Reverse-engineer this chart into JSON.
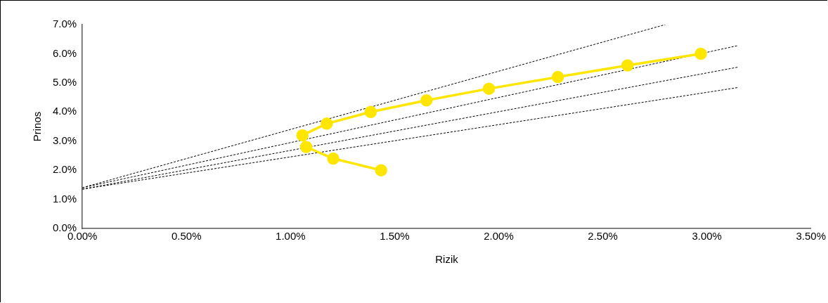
{
  "chart_data": {
    "type": "line",
    "xlabel": "Rizik",
    "ylabel": "Prinos",
    "grid": false,
    "legend": false,
    "xlim": [
      0,
      3.5
    ],
    "xticks": [
      {
        "value": 0,
        "label": "0.00%"
      },
      {
        "value": 0.5,
        "label": "0.50%"
      },
      {
        "value": 1,
        "label": "1.00%"
      },
      {
        "value": 1.5,
        "label": "1.50%"
      },
      {
        "value": 2,
        "label": "2.00%"
      },
      {
        "value": 2.5,
        "label": "2.50%"
      },
      {
        "value": 3,
        "label": "3.00%"
      },
      {
        "value": 3.5,
        "label": "3.50%"
      }
    ],
    "ylim": [
      0,
      7
    ],
    "yticks": [
      {
        "value": 0,
        "label": "0.0%"
      },
      {
        "value": 1,
        "label": "1.0%"
      },
      {
        "value": 2,
        "label": "2.0%"
      },
      {
        "value": 3,
        "label": "3.0%"
      },
      {
        "value": 4,
        "label": "4.0%"
      },
      {
        "value": 5,
        "label": "5.0%"
      },
      {
        "value": 6,
        "label": "6.0%"
      },
      {
        "value": 7,
        "label": "7.0%"
      }
    ],
    "series": [
      {
        "color": "#ffe600",
        "marker": "circle",
        "line_style": "solid",
        "x": [
          1.435,
          1.205,
          1.075,
          1.057,
          1.174,
          1.385,
          1.653,
          1.953,
          2.284,
          2.619,
          2.971
        ],
        "values": [
          2.0,
          2.4,
          2.8,
          3.2,
          3.6,
          4.0,
          4.4,
          4.8,
          5.2,
          5.6,
          6.0
        ]
      },
      {
        "color": "#000000",
        "marker": "none",
        "line_style": "dashed",
        "x": [
          0,
          2.8
        ],
        "values": [
          1.4,
          7.0
        ]
      },
      {
        "color": "#000000",
        "marker": "none",
        "line_style": "dashed",
        "x": [
          0,
          3.15
        ],
        "values": [
          1.4,
          6.28
        ]
      },
      {
        "color": "#000000",
        "marker": "none",
        "line_style": "dashed",
        "x": [
          0,
          3.15
        ],
        "values": [
          1.35,
          5.54
        ]
      },
      {
        "color": "#000000",
        "marker": "none",
        "line_style": "dashed",
        "x": [
          0,
          3.15
        ],
        "values": [
          1.35,
          4.84
        ]
      }
    ]
  }
}
